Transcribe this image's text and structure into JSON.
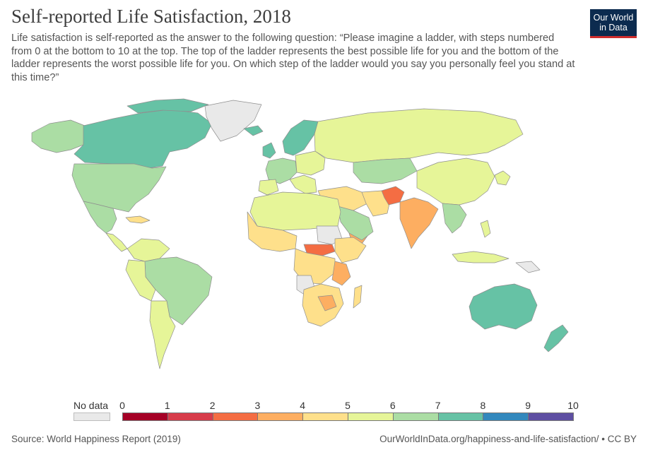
{
  "header": {
    "title": "Self-reported Life Satisfaction, 2018",
    "subtitle": "Life satisfaction is self-reported as the answer to the following question: “Please imagine a ladder, with steps numbered from 0 at the bottom to 10 at the top. The top of the ladder represents the best possible life for you and the bottom of the ladder represents the worst possible life for you. On which step of the ladder would you say you personally feel you stand at this time?”"
  },
  "logo": {
    "line1": "Our World",
    "line2": "in Data"
  },
  "legend": {
    "nodata_label": "No data",
    "nodata_color": "#e9e9e9",
    "ticks": [
      "0",
      "1",
      "2",
      "3",
      "4",
      "5",
      "6",
      "7",
      "8",
      "9",
      "10"
    ],
    "bin_colors": [
      "#a50026",
      "#d73c4a",
      "#f46d43",
      "#fdae61",
      "#fee08b",
      "#e6f598",
      "#abdda4",
      "#66c2a5",
      "#3288bd",
      "#5e4fa2"
    ]
  },
  "footer": {
    "source": "Source: World Happiness Report (2019)",
    "credit": "OurWorldInData.org/happiness-and-life-satisfaction/ • CC BY"
  },
  "colors": {
    "background": "#ffffff",
    "country_border": "#9a9a9a",
    "logo_bg": "#0c2b4f",
    "logo_accent": "#cf2d2d"
  }
}
